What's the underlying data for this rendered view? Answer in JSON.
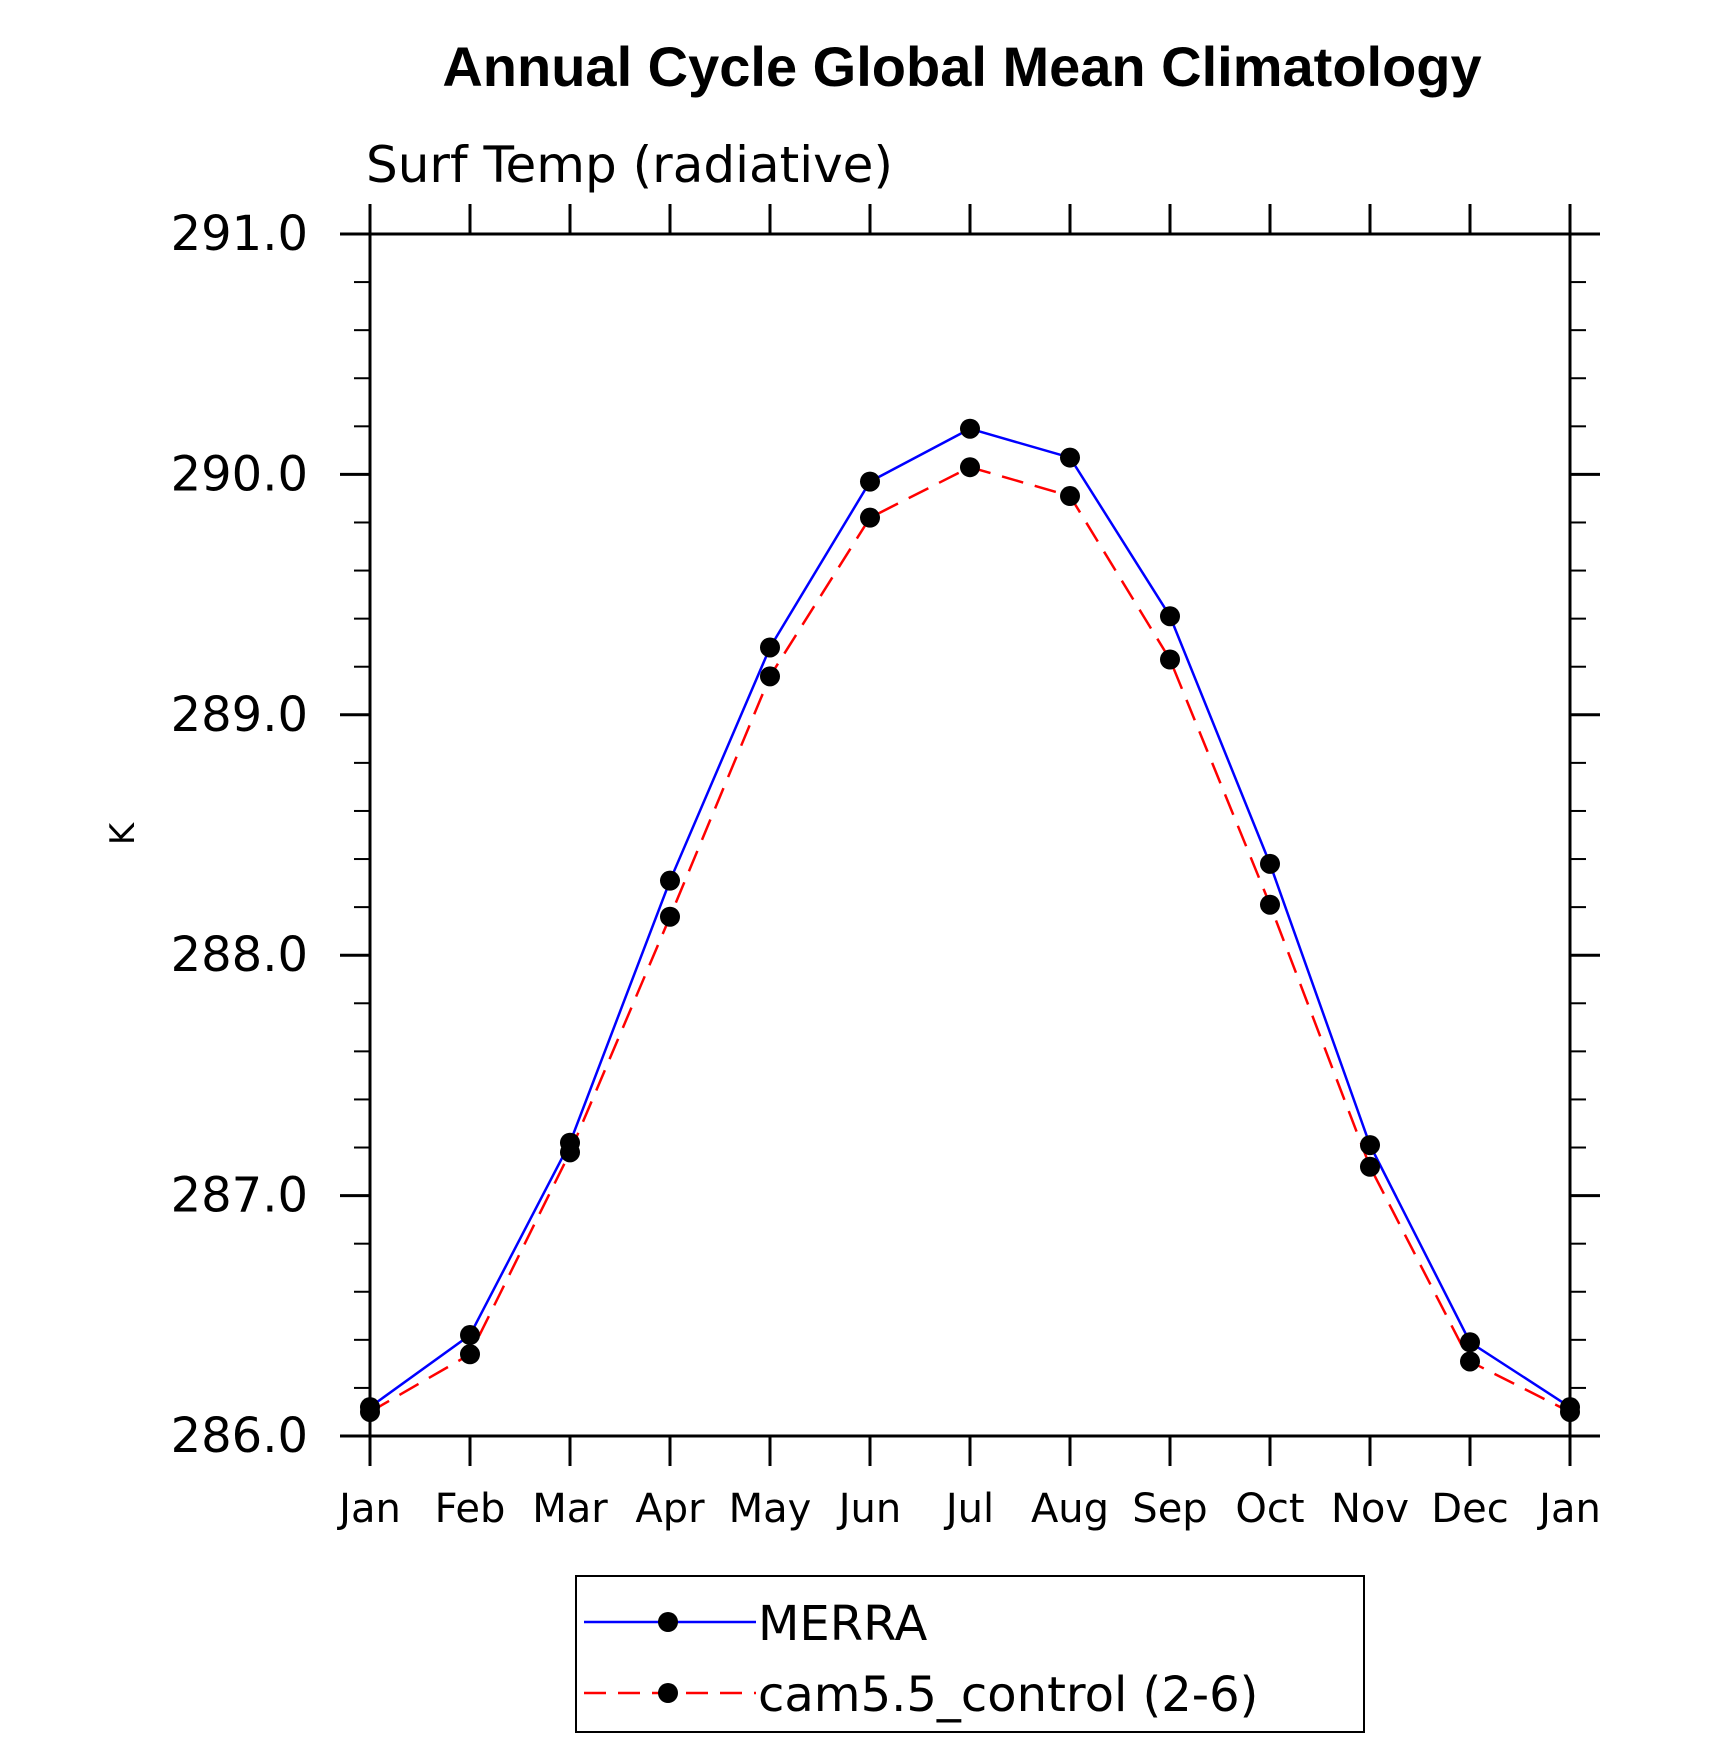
{
  "chart_data": {
    "type": "line",
    "title": "Annual Cycle Global Mean Climatology",
    "subtitle": "Surf Temp (radiative)",
    "xlabel": "",
    "ylabel": "K",
    "categories": [
      "Jan",
      "Feb",
      "Mar",
      "Apr",
      "May",
      "Jun",
      "Jul",
      "Aug",
      "Sep",
      "Oct",
      "Nov",
      "Dec",
      "Jan"
    ],
    "ylim": [
      286.0,
      291.0
    ],
    "yticks": [
      286.0,
      287.0,
      288.0,
      289.0,
      290.0,
      291.0
    ],
    "ytick_labels": [
      "286.0",
      "287.0",
      "288.0",
      "289.0",
      "290.0",
      "291.0"
    ],
    "yminor_step": 0.2,
    "grid": false,
    "legend_position": "bottom-center",
    "series": [
      {
        "name": "MERRA",
        "color": "#0000ff",
        "line_style": "solid",
        "marker": "filled-circle",
        "values": [
          286.12,
          286.42,
          287.22,
          288.31,
          289.28,
          289.97,
          290.19,
          290.07,
          289.41,
          288.38,
          287.21,
          286.39,
          286.12
        ]
      },
      {
        "name": "cam5.5_control (2-6)",
        "color": "#ff0000",
        "line_style": "dashed",
        "marker": "filled-circle",
        "values": [
          286.1,
          286.34,
          287.18,
          288.16,
          289.16,
          289.82,
          290.03,
          289.91,
          289.23,
          288.21,
          287.12,
          286.31,
          286.1
        ]
      }
    ]
  }
}
